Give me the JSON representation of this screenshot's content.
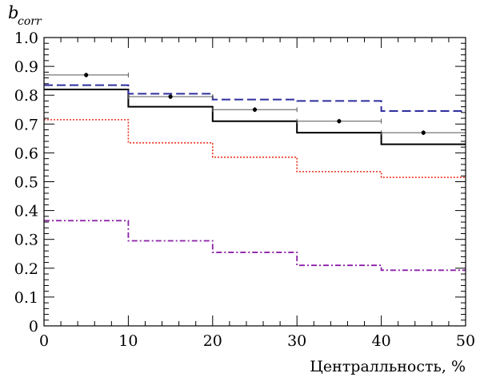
{
  "chart_data": {
    "type": "line",
    "step": true,
    "ylabel_main": "b",
    "ylabel_sub": "corr",
    "xlabel": "Централльность, %",
    "xlim": [
      0,
      50
    ],
    "ylim": [
      0,
      1.0
    ],
    "xticks": [
      0,
      10,
      20,
      30,
      40,
      50
    ],
    "xtick_labels": [
      "0",
      "10",
      "20",
      "30",
      "40",
      "50"
    ],
    "yticks": [
      0,
      0.1,
      0.2,
      0.3,
      0.4,
      0.5,
      0.6,
      0.7,
      0.8,
      0.9,
      1.0
    ],
    "ytick_labels": [
      "0",
      "0.1",
      "0.2",
      "0.3",
      "0.4",
      "0.5",
      "0.6",
      "0.7",
      "0.8",
      "0.9",
      "1.0"
    ],
    "bin_edges": [
      0,
      10,
      20,
      30,
      40,
      50
    ],
    "series": [
      {
        "style": "solid",
        "color": "#000000",
        "values": [
          0.82,
          0.76,
          0.71,
          0.67,
          0.63
        ]
      },
      {
        "style": "dashed",
        "color": "#2e2e9e",
        "values": [
          0.835,
          0.805,
          0.785,
          0.78,
          0.745
        ]
      },
      {
        "style": "dotted",
        "color": "#e8321e",
        "values": [
          0.715,
          0.635,
          0.585,
          0.535,
          0.515
        ]
      },
      {
        "style": "dashdot",
        "color": "#8a1fa8",
        "values": [
          0.365,
          0.295,
          0.255,
          0.21,
          0.193
        ]
      }
    ],
    "points": {
      "color": "#000000",
      "x": [
        5,
        15,
        25,
        35,
        45
      ],
      "y": [
        0.87,
        0.795,
        0.75,
        0.71,
        0.67
      ],
      "yerr": [
        0.008,
        0.008,
        0.008,
        0.008,
        0.008
      ],
      "xerr": [
        5,
        5,
        5,
        5,
        5
      ]
    }
  }
}
